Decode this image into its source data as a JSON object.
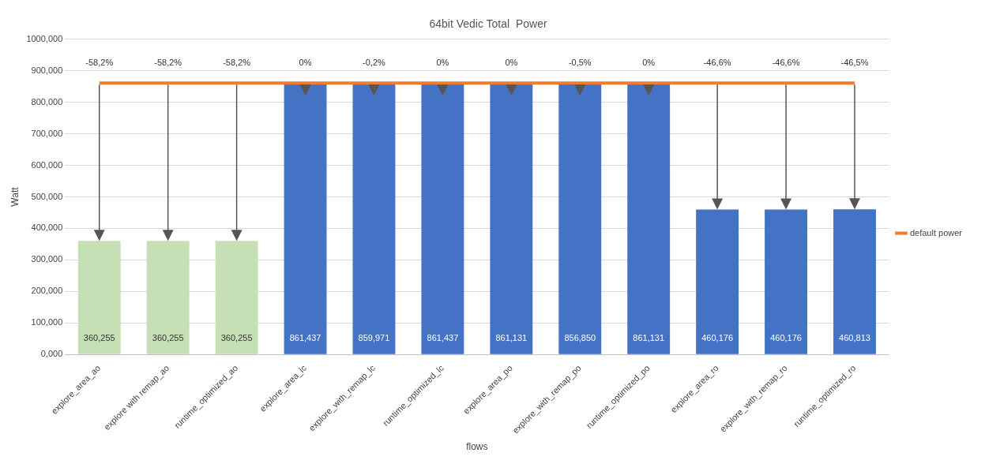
{
  "chart_data": {
    "type": "bar",
    "title": "64bit Vedic Total  Power",
    "xlabel": "flows",
    "ylabel": "Watt",
    "categories": [
      "explore_area_ao",
      "explore with remap_ao",
      "runtime_optimized_ao",
      "explore_area_lc",
      "explore_with_remap_lc",
      "runtime_optimized_lc",
      "explore_area_po",
      "explore_with_remap_po",
      "runtime_optimized_po",
      "explore_area_ro",
      "explore_with_remap_ro",
      "runtime_optimized_ro"
    ],
    "series": [
      {
        "colors": [
          "#c5e0b4",
          "#c5e0b4",
          "#c5e0b4",
          "#4472c4",
          "#4472c4",
          "#4472c4",
          "#4472c4",
          "#4472c4",
          "#4472c4",
          "#4472c4",
          "#4472c4",
          "#4472c4"
        ],
        "values": [
          360.255,
          360.255,
          360.255,
          861.437,
          859.971,
          861.437,
          861.131,
          856.85,
          861.131,
          460.176,
          460.176,
          460.813
        ],
        "value_labels": [
          "360,255",
          "360,255",
          "360,255",
          "861,437",
          "859,971",
          "861,437",
          "861,131",
          "856,850",
          "861,131",
          "460,176",
          "460,176",
          "460,813"
        ]
      },
      {
        "type": "line",
        "name": "default power",
        "color": "#ed7d31",
        "values": [
          861,
          861,
          861,
          861,
          861,
          861,
          861,
          861,
          861,
          861,
          861,
          861
        ]
      }
    ],
    "annotations": [
      "-58,2%",
      "-58,2%",
      "-58,2%",
      "0%",
      "-0,2%",
      "0%",
      "0%",
      "-0,5%",
      "0%",
      "-46,6%",
      "-46,6%",
      "-46,5%"
    ],
    "ylim": [
      0,
      1000
    ],
    "yticks": [
      {
        "value": 0,
        "label": "0,000"
      },
      {
        "value": 100,
        "label": "100,000"
      },
      {
        "value": 200,
        "label": "200,000"
      },
      {
        "value": 300,
        "label": "300,000"
      },
      {
        "value": 400,
        "label": "400,000"
      },
      {
        "value": 500,
        "label": "500,000"
      },
      {
        "value": 600,
        "label": "600,000"
      },
      {
        "value": 700,
        "label": "700,000"
      },
      {
        "value": 800,
        "label": "800,000"
      },
      {
        "value": 900,
        "label": "900,000"
      },
      {
        "value": 1000,
        "label": "1000,000"
      }
    ],
    "grid": "y",
    "legend": "right",
    "marker": "none",
    "line_style": "solid"
  }
}
